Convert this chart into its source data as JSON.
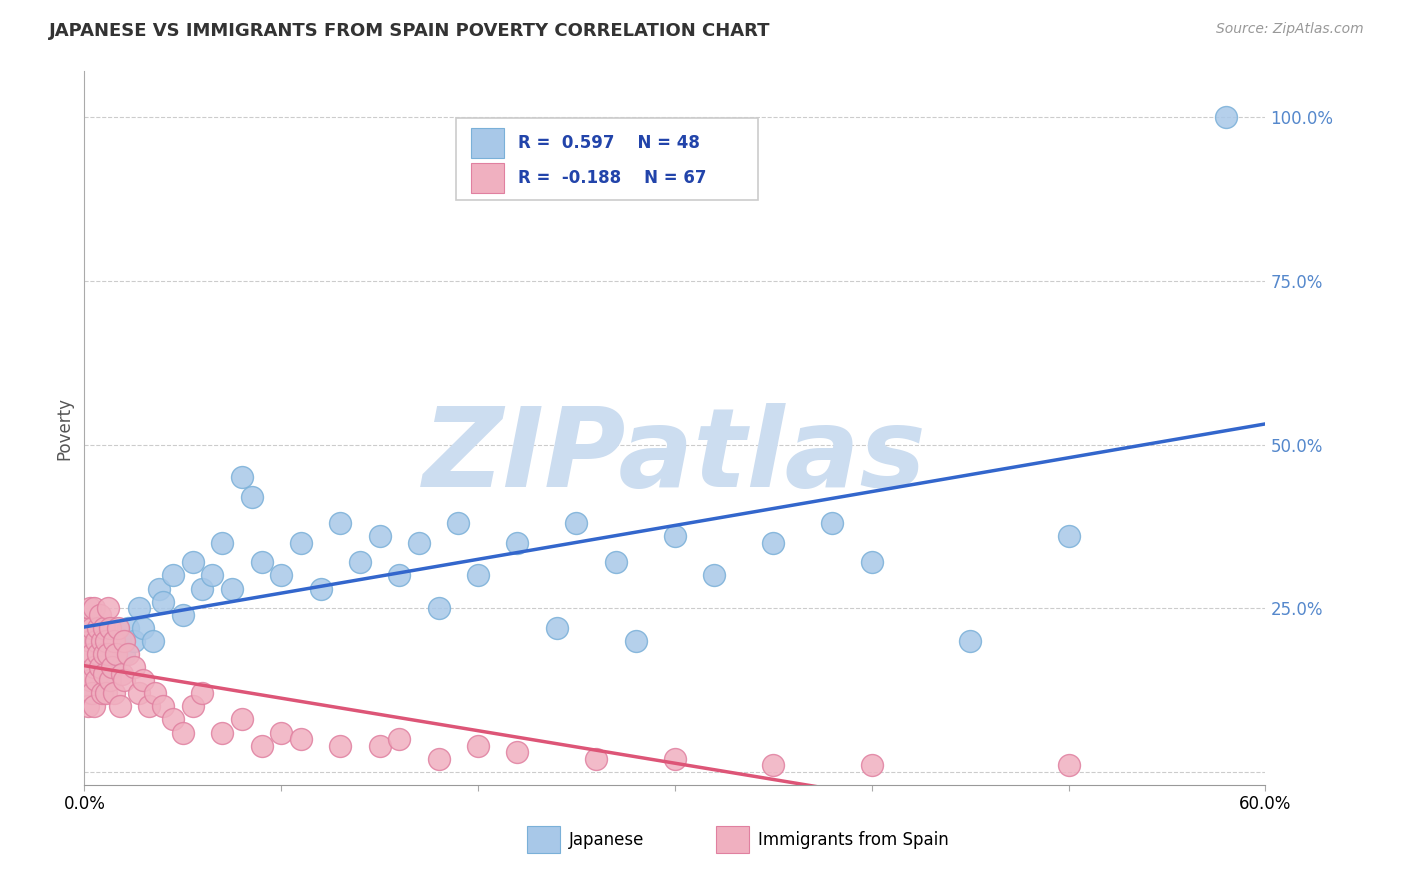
{
  "title": "JAPANESE VS IMMIGRANTS FROM SPAIN POVERTY CORRELATION CHART",
  "source": "Source: ZipAtlas.com",
  "ylabel": "Poverty",
  "xlim": [
    0.0,
    0.6
  ],
  "ylim": [
    -0.02,
    1.07
  ],
  "xticks": [
    0.0,
    0.1,
    0.2,
    0.3,
    0.4,
    0.5,
    0.6
  ],
  "xticklabels": [
    "0.0%",
    "",
    "",
    "",
    "",
    "",
    "60.0%"
  ],
  "ytick_positions": [
    0.0,
    0.25,
    0.5,
    0.75,
    1.0
  ],
  "ytick_labels": [
    "",
    "25.0%",
    "50.0%",
    "75.0%",
    "100.0%"
  ],
  "grid_color": "#cccccc",
  "background_color": "#ffffff",
  "watermark_text": "ZIPatlas",
  "watermark_color": "#ccddf0",
  "japanese_color": "#a8c8e8",
  "japan_edge_color": "#7ab0d8",
  "spain_color": "#f0b0c0",
  "spain_edge_color": "#e080a0",
  "trend_blue_color": "#3366cc",
  "trend_pink_color": "#dd5577",
  "R_japanese": 0.597,
  "N_japanese": 48,
  "R_spain": -0.188,
  "N_spain": 67,
  "japanese_x": [
    0.005,
    0.008,
    0.01,
    0.012,
    0.015,
    0.018,
    0.02,
    0.022,
    0.025,
    0.028,
    0.03,
    0.035,
    0.038,
    0.04,
    0.045,
    0.05,
    0.055,
    0.06,
    0.065,
    0.07,
    0.075,
    0.08,
    0.085,
    0.09,
    0.1,
    0.11,
    0.12,
    0.13,
    0.14,
    0.15,
    0.16,
    0.17,
    0.18,
    0.19,
    0.2,
    0.22,
    0.24,
    0.25,
    0.27,
    0.28,
    0.3,
    0.32,
    0.35,
    0.38,
    0.4,
    0.45,
    0.5,
    0.58
  ],
  "japanese_y": [
    0.12,
    0.15,
    0.14,
    0.18,
    0.16,
    0.2,
    0.18,
    0.22,
    0.2,
    0.25,
    0.22,
    0.2,
    0.28,
    0.26,
    0.3,
    0.24,
    0.32,
    0.28,
    0.3,
    0.35,
    0.28,
    0.45,
    0.42,
    0.32,
    0.3,
    0.35,
    0.28,
    0.38,
    0.32,
    0.36,
    0.3,
    0.35,
    0.25,
    0.38,
    0.3,
    0.35,
    0.22,
    0.38,
    0.32,
    0.2,
    0.36,
    0.3,
    0.35,
    0.38,
    0.32,
    0.2,
    0.36,
    1.0
  ],
  "spain_x": [
    0.001,
    0.001,
    0.002,
    0.002,
    0.002,
    0.003,
    0.003,
    0.003,
    0.004,
    0.004,
    0.004,
    0.005,
    0.005,
    0.005,
    0.006,
    0.006,
    0.007,
    0.007,
    0.008,
    0.008,
    0.009,
    0.009,
    0.01,
    0.01,
    0.01,
    0.011,
    0.011,
    0.012,
    0.012,
    0.013,
    0.013,
    0.014,
    0.015,
    0.015,
    0.016,
    0.017,
    0.018,
    0.019,
    0.02,
    0.02,
    0.022,
    0.025,
    0.028,
    0.03,
    0.033,
    0.036,
    0.04,
    0.045,
    0.05,
    0.055,
    0.06,
    0.07,
    0.08,
    0.09,
    0.1,
    0.11,
    0.13,
    0.15,
    0.16,
    0.18,
    0.2,
    0.22,
    0.26,
    0.3,
    0.35,
    0.4,
    0.5
  ],
  "spain_y": [
    0.12,
    0.18,
    0.15,
    0.22,
    0.1,
    0.2,
    0.14,
    0.25,
    0.18,
    0.12,
    0.22,
    0.16,
    0.25,
    0.1,
    0.2,
    0.14,
    0.22,
    0.18,
    0.16,
    0.24,
    0.12,
    0.2,
    0.18,
    0.22,
    0.15,
    0.2,
    0.12,
    0.18,
    0.25,
    0.14,
    0.22,
    0.16,
    0.2,
    0.12,
    0.18,
    0.22,
    0.1,
    0.15,
    0.2,
    0.14,
    0.18,
    0.16,
    0.12,
    0.14,
    0.1,
    0.12,
    0.1,
    0.08,
    0.06,
    0.1,
    0.12,
    0.06,
    0.08,
    0.04,
    0.06,
    0.05,
    0.04,
    0.04,
    0.05,
    0.02,
    0.04,
    0.03,
    0.02,
    0.02,
    0.01,
    0.01,
    0.01
  ],
  "legend_R_color": "#2244aa",
  "legend_N_color": "#2244aa",
  "right_axis_color": "#5588cc"
}
